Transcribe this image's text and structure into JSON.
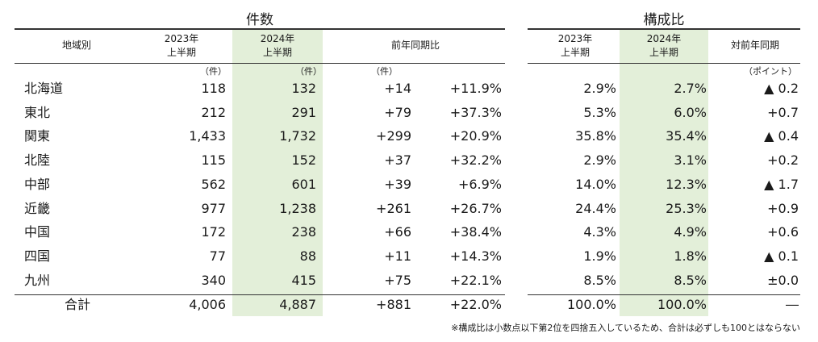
{
  "groups": {
    "count": "件数",
    "ratio": "構成比"
  },
  "headers": {
    "region": "地域別",
    "h2023": [
      "2023年",
      "上半期"
    ],
    "h2024": [
      "2024年",
      "上半期"
    ],
    "yoy": "前年同期比",
    "ratio2023": [
      "2023年",
      "上半期"
    ],
    "ratio2024": [
      "2024年",
      "上半期"
    ],
    "ratio_yoy": "対前年同期"
  },
  "units": {
    "c2023": "（件）",
    "c2024": "（件）",
    "diff": "（件）",
    "points": "（ポイント）"
  },
  "rows": [
    {
      "region": "北海道",
      "c2023": "118",
      "c2024": "132",
      "diff": "+14",
      "pct": "+11.9%",
      "r2023": "2.9%",
      "r2024": "2.7%",
      "pt": "▲ 0.2"
    },
    {
      "region": "東北",
      "c2023": "212",
      "c2024": "291",
      "diff": "+79",
      "pct": "+37.3%",
      "r2023": "5.3%",
      "r2024": "6.0%",
      "pt": "+0.7"
    },
    {
      "region": "関東",
      "c2023": "1,433",
      "c2024": "1,732",
      "diff": "+299",
      "pct": "+20.9%",
      "r2023": "35.8%",
      "r2024": "35.4%",
      "pt": "▲ 0.4"
    },
    {
      "region": "北陸",
      "c2023": "115",
      "c2024": "152",
      "diff": "+37",
      "pct": "+32.2%",
      "r2023": "2.9%",
      "r2024": "3.1%",
      "pt": "+0.2"
    },
    {
      "region": "中部",
      "c2023": "562",
      "c2024": "601",
      "diff": "+39",
      "pct": "+6.9%",
      "r2023": "14.0%",
      "r2024": "12.3%",
      "pt": "▲ 1.7"
    },
    {
      "region": "近畿",
      "c2023": "977",
      "c2024": "1,238",
      "diff": "+261",
      "pct": "+26.7%",
      "r2023": "24.4%",
      "r2024": "25.3%",
      "pt": "+0.9"
    },
    {
      "region": "中国",
      "c2023": "172",
      "c2024": "238",
      "diff": "+66",
      "pct": "+38.4%",
      "r2023": "4.3%",
      "r2024": "4.9%",
      "pt": "+0.6"
    },
    {
      "region": "四国",
      "c2023": "77",
      "c2024": "88",
      "diff": "+11",
      "pct": "+14.3%",
      "r2023": "1.9%",
      "r2024": "1.8%",
      "pt": "▲ 0.1"
    },
    {
      "region": "九州",
      "c2023": "340",
      "c2024": "415",
      "diff": "+75",
      "pct": "+22.1%",
      "r2023": "8.5%",
      "r2024": "8.5%",
      "pt": "±0.0"
    }
  ],
  "total": {
    "label": "合計",
    "c2023": "4,006",
    "c2024": "4,887",
    "diff": "+881",
    "pct": "+22.0%",
    "r2023": "100.0%",
    "r2024": "100.0%",
    "pt": "―"
  },
  "footnote": "※構成比は小数点以下第2位を四捨五入しているため、合計は必ずしも100とはならない",
  "colors": {
    "highlight": "#e3efd9",
    "rule": "#333333"
  }
}
